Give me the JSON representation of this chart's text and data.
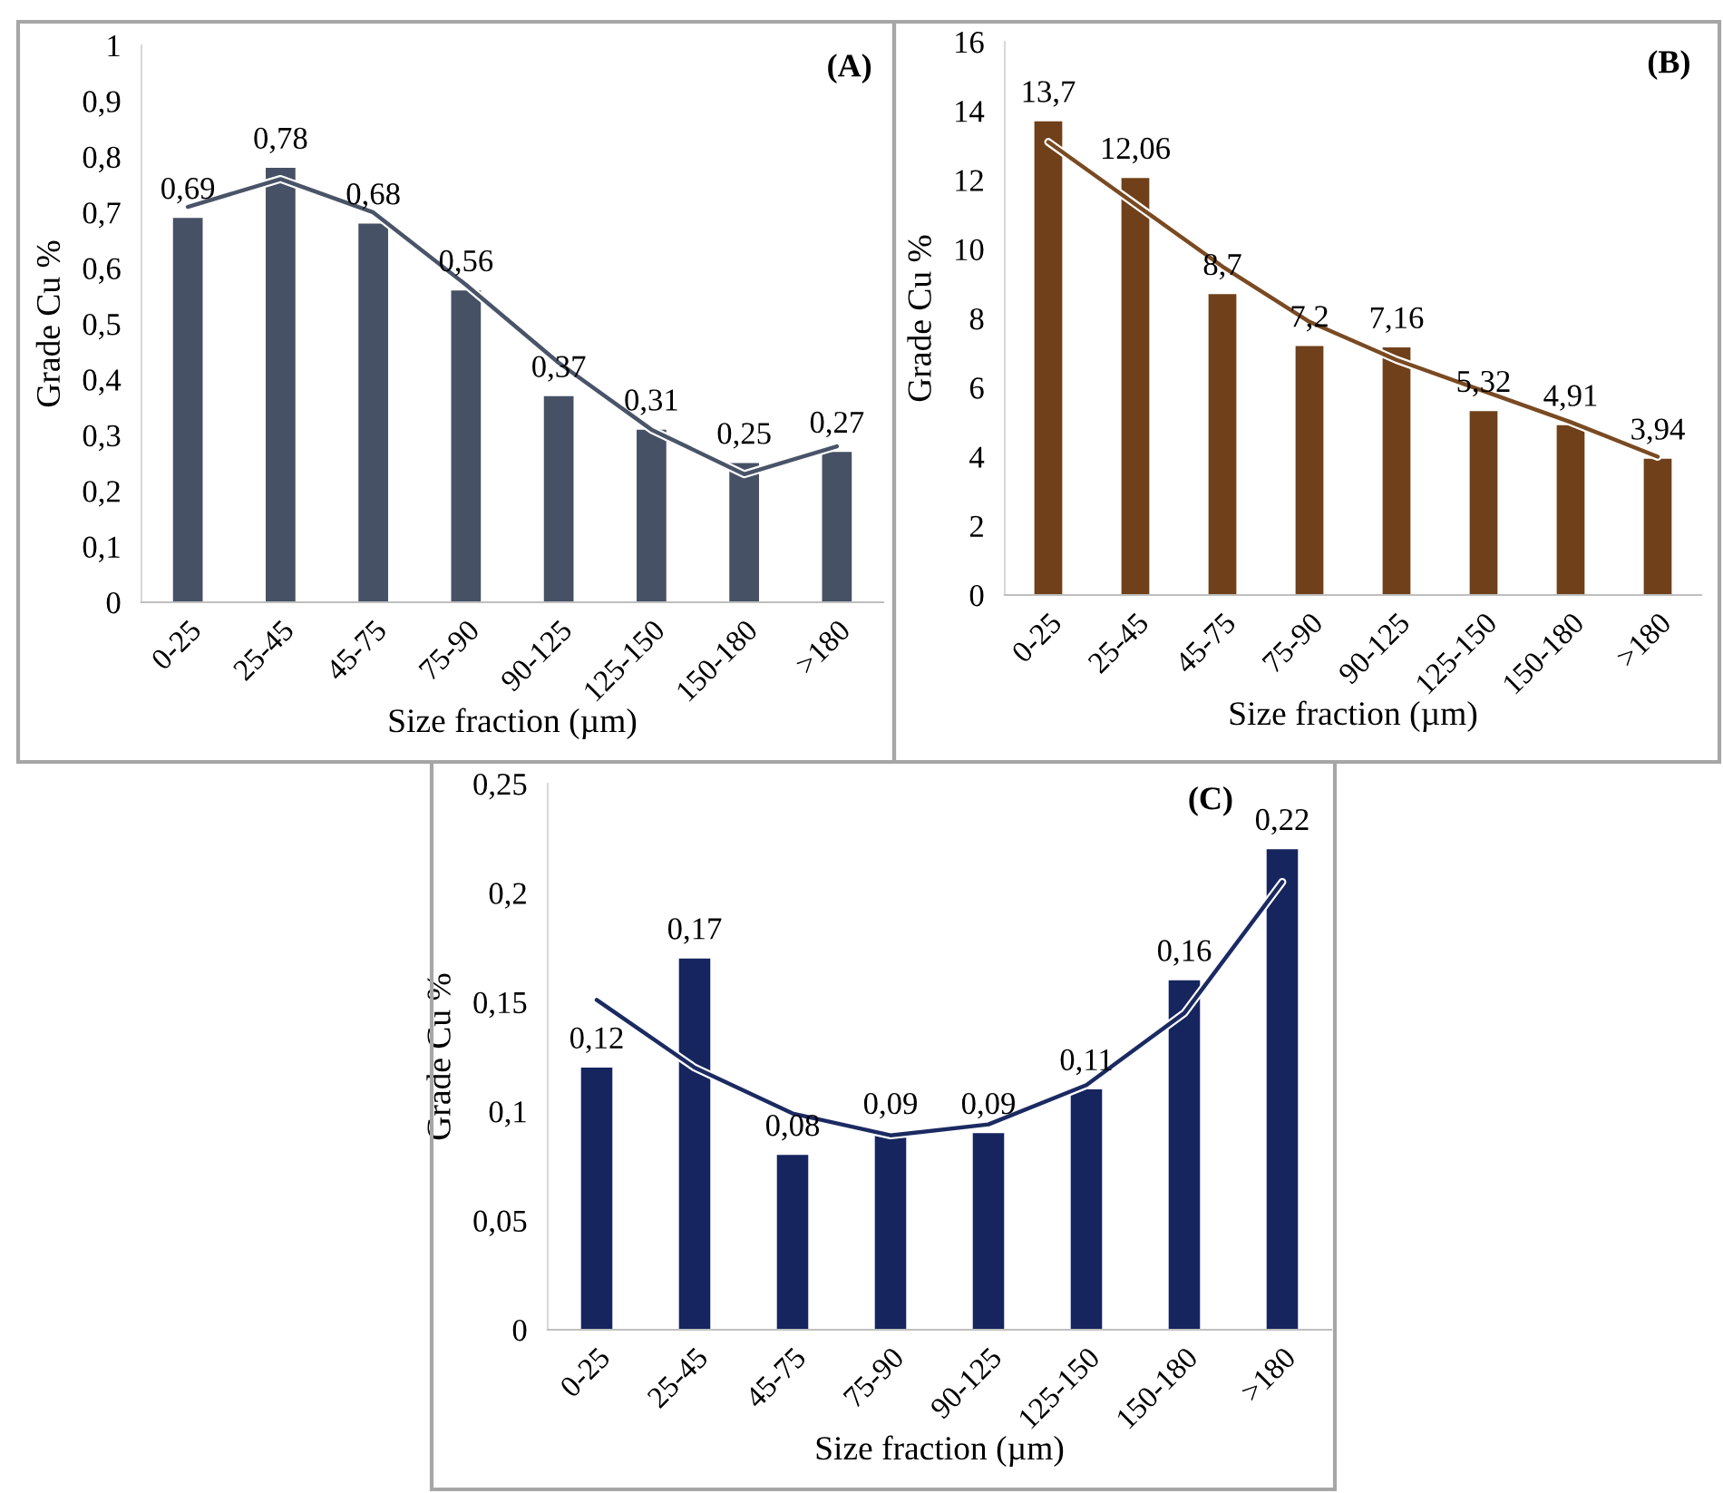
{
  "chart_data": [
    {
      "type": "bar",
      "annotations": [
        "(A)"
      ],
      "xlabel": "Size fraction (µm)",
      "ylabel": "Grade Cu %",
      "categories": [
        "0-25",
        "25-45",
        "45-75",
        "75-90",
        "90-125",
        "125-150",
        "150-180",
        ">180"
      ],
      "series": [
        {
          "color": "#465165",
          "values": [
            0.69,
            0.78,
            0.68,
            0.56,
            0.37,
            0.31,
            0.25,
            0.27
          ],
          "value_labels": [
            "0,69",
            "0,78",
            "0,68",
            "0,56",
            "0,37",
            "0,31",
            "0,25",
            "0,27"
          ]
        },
        {
          "type": "line",
          "color": "#4a5468",
          "values": [
            0.71,
            0.76,
            0.7,
            0.57,
            0.43,
            0.31,
            0.23,
            0.28
          ]
        }
      ],
      "ylim": [
        0,
        1
      ],
      "yticks": [
        0,
        {
          "value": 0.1,
          "label": "0,1"
        },
        {
          "value": 0.2,
          "label": "0,2"
        },
        {
          "value": 0.3,
          "label": "0,3"
        },
        {
          "value": 0.4,
          "label": "0,4"
        },
        {
          "value": 0.5,
          "label": "0,5"
        },
        {
          "value": 0.6,
          "label": "0,6"
        },
        {
          "value": 0.7,
          "label": "0,7"
        },
        {
          "value": 0.8,
          "label": "0,8"
        },
        {
          "value": 0.9,
          "label": "0,9"
        },
        1
      ]
    },
    {
      "type": "bar",
      "annotations": [
        "(B)"
      ],
      "xlabel": "Size fraction (µm)",
      "ylabel": "Grade Cu %",
      "categories": [
        "0-25",
        "25-45",
        "45-75",
        "75-90",
        "90-125",
        "125-150",
        "150-180",
        ">180"
      ],
      "series": [
        {
          "color": "#6f401a",
          "values": [
            13.7,
            12.06,
            8.7,
            7.2,
            7.16,
            5.32,
            4.91,
            3.94
          ],
          "value_labels": [
            "13,7",
            "12,06",
            "8,7",
            "7,2",
            "7,16",
            "5,32",
            "4,91",
            "3,94"
          ]
        },
        {
          "type": "line",
          "color": "#7a4a22",
          "values": [
            13.1,
            11.3,
            9.5,
            7.9,
            6.8,
            5.9,
            5.0,
            4.0
          ]
        }
      ],
      "ylim": [
        0,
        16
      ],
      "yticks": [
        0,
        2,
        4,
        6,
        8,
        10,
        12,
        14,
        16
      ]
    },
    {
      "type": "bar",
      "annotations": [
        "(C)"
      ],
      "xlabel": "Size fraction (µm)",
      "ylabel": "Grade Cu %",
      "categories": [
        "0-25",
        "25-45",
        "45-75",
        "75-90",
        "90-125",
        "125-150",
        "150-180",
        ">180"
      ],
      "series": [
        {
          "color": "#16255e",
          "values": [
            0.12,
            0.17,
            0.08,
            0.09,
            0.09,
            0.11,
            0.16,
            0.22
          ],
          "value_labels": [
            "0,12",
            "0,17",
            "0,08",
            "0,09",
            "0,09",
            "0,11",
            "0,16",
            "0,22"
          ]
        },
        {
          "type": "line",
          "color": "#1b2a62",
          "values": [
            0.151,
            0.12,
            0.099,
            0.089,
            0.094,
            0.112,
            0.145,
            0.205
          ]
        }
      ],
      "ylim": [
        0,
        0.25
      ],
      "yticks": [
        0,
        {
          "value": 0.05,
          "label": "0,05"
        },
        {
          "value": 0.1,
          "label": "0,1"
        },
        {
          "value": 0.15,
          "label": "0,15"
        },
        {
          "value": 0.2,
          "label": "0,2"
        },
        {
          "value": 0.25,
          "label": "0,25"
        }
      ]
    }
  ]
}
